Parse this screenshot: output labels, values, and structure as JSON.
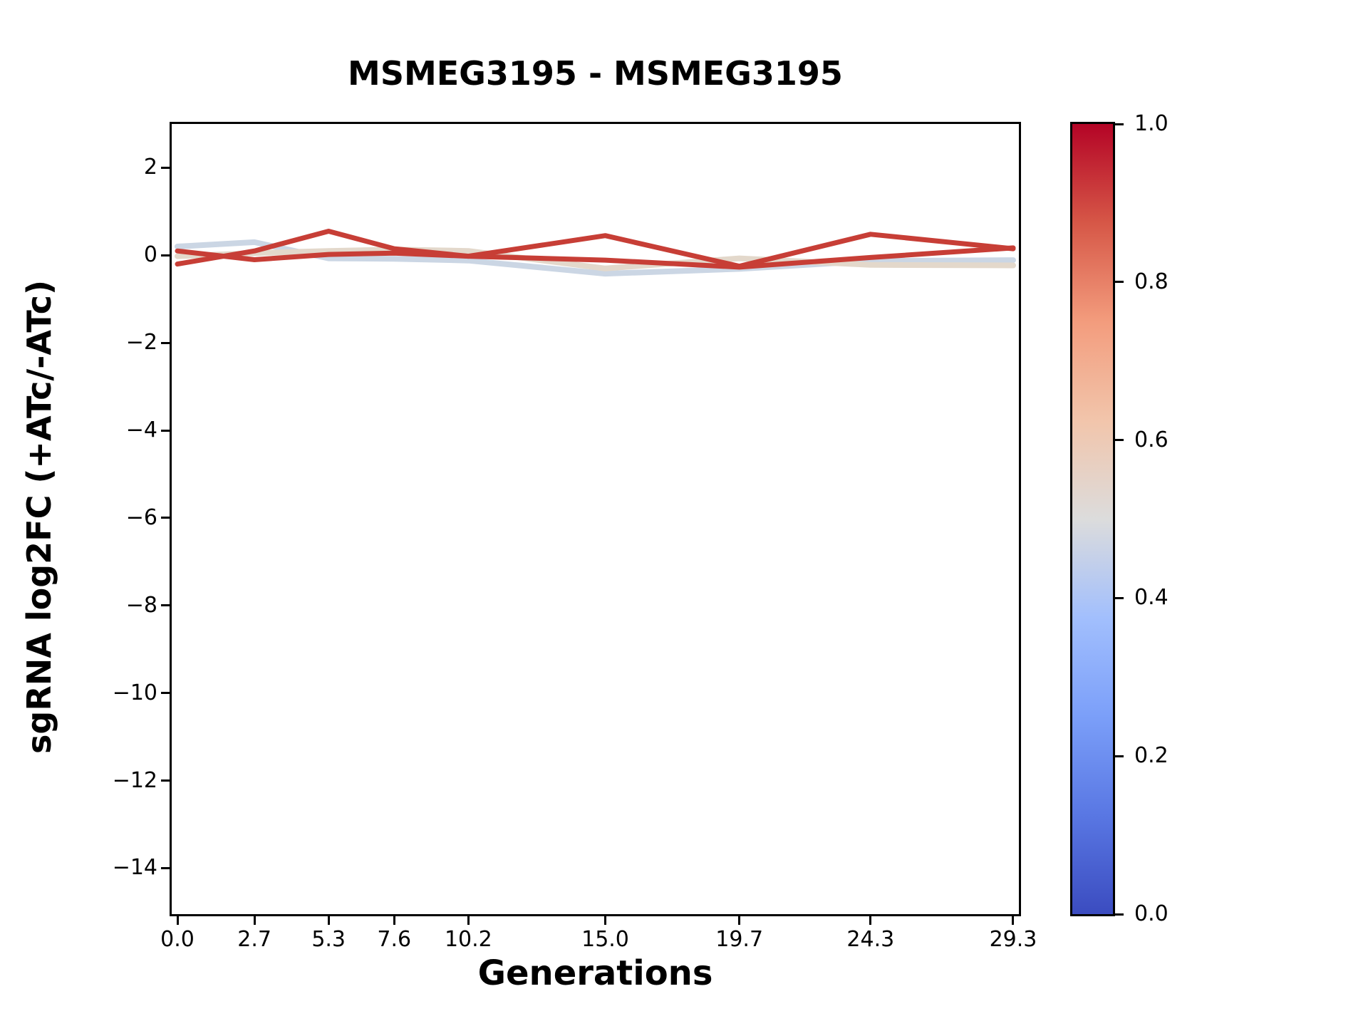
{
  "title": "MSMEG3195 - MSMEG3195",
  "chart_data": {
    "type": "line",
    "title": "MSMEG3195 - MSMEG3195",
    "xlabel": "Generations",
    "ylabel": "sgRNA log2FC (+ATc/-ATc)",
    "x": [
      0.0,
      2.7,
      5.3,
      7.6,
      10.2,
      15.0,
      19.7,
      24.3,
      29.3
    ],
    "xtick_labels": [
      "0.0",
      "2.7",
      "5.3",
      "7.6",
      "10.2",
      "15.0",
      "19.7",
      "24.3",
      "29.3"
    ],
    "yticks": [
      2,
      0,
      -2,
      -4,
      -6,
      -8,
      -10,
      -12,
      -14
    ],
    "ytick_labels": [
      "2",
      "0",
      "−2",
      "−4",
      "−6",
      "−8",
      "−10",
      "−12",
      "−14"
    ],
    "xlim": [
      -0.2,
      29.5
    ],
    "ylim": [
      -15.05,
      3.0
    ],
    "grid": false,
    "legend": "none",
    "series": [
      {
        "id": "line-light-blue",
        "color": "#CBD6E4",
        "width": 8,
        "values": [
          0.2,
          0.3,
          -0.07,
          -0.08,
          -0.12,
          -0.42,
          -0.31,
          -0.13,
          -0.11
        ]
      },
      {
        "id": "line-light-tan",
        "color": "#E3D8CB",
        "width": 8,
        "values": [
          -0.02,
          0.05,
          0.1,
          0.13,
          0.1,
          -0.3,
          -0.07,
          -0.22,
          -0.23
        ]
      },
      {
        "id": "line-red-flat",
        "color": "#C73E36",
        "width": 7,
        "values": [
          0.1,
          -0.1,
          0.02,
          0.05,
          -0.02,
          -0.11,
          -0.27,
          -0.05,
          0.17
        ]
      },
      {
        "id": "line-red-zigzag",
        "color": "#C73E36",
        "width": 7,
        "values": [
          -0.2,
          0.1,
          0.55,
          0.15,
          -0.02,
          0.45,
          -0.25,
          0.48,
          0.15
        ]
      }
    ],
    "colorbar": {
      "colormap": "coolwarm",
      "range": [
        0.0,
        1.0
      ],
      "tick_values": [
        1.0,
        0.8,
        0.6,
        0.4,
        0.2,
        0.0
      ],
      "tick_labels": [
        "1.0",
        "0.8",
        "0.6",
        "0.4",
        "0.2",
        "0.0"
      ],
      "gradient_stops": [
        [
          0.0,
          "#3B4CC0"
        ],
        [
          0.125,
          "#5977E3"
        ],
        [
          0.25,
          "#7B9FF9"
        ],
        [
          0.375,
          "#A2BFFD"
        ],
        [
          0.5,
          "#DCDCDC"
        ],
        [
          0.625,
          "#F2C5AB"
        ],
        [
          0.75,
          "#F39C7D"
        ],
        [
          0.875,
          "#D65747"
        ],
        [
          1.0,
          "#B40426"
        ]
      ]
    },
    "axis_color": "#000000",
    "background_color": "#FFFFFF"
  }
}
